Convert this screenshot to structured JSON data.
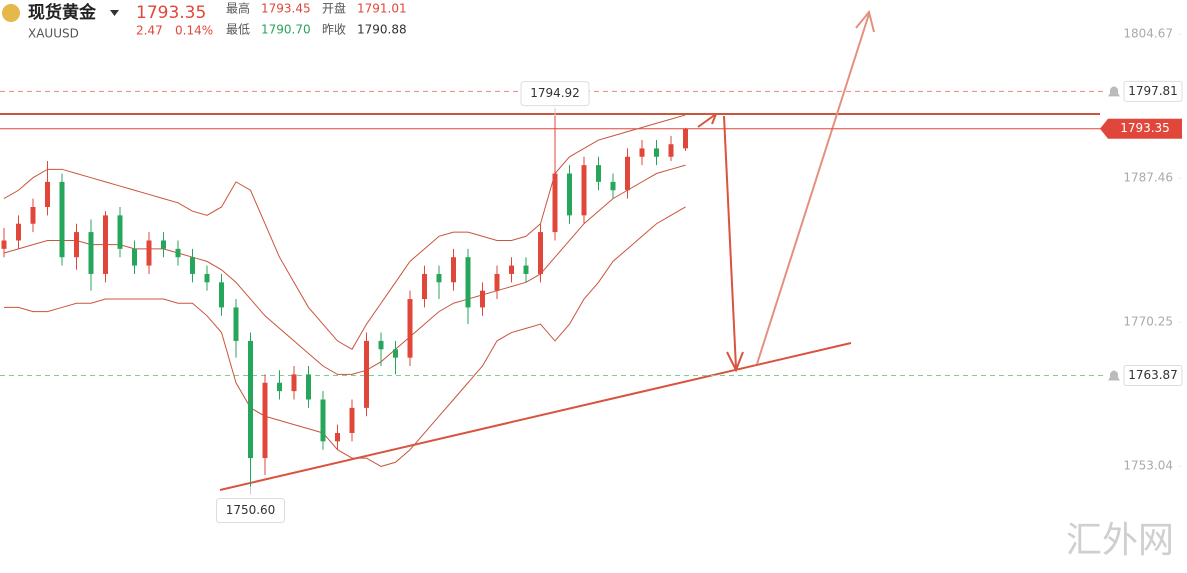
{
  "chart_data": {
    "type": "candlestick",
    "header": {
      "name": "现货黄金",
      "symbol": "XAUUSD",
      "last": "1793.35",
      "change": "2.47",
      "change_pct": "0.14%",
      "stats": [
        {
          "label": "最高",
          "value": "1793.45",
          "color": "#e0473a"
        },
        {
          "label": "开盘",
          "value": "1791.01",
          "color": "#e0473a"
        },
        {
          "label": "最低",
          "value": "1790.70",
          "color": "#26a65b"
        },
        {
          "label": "昨收",
          "value": "1790.88",
          "color": "#333333"
        }
      ]
    },
    "ylim": [
      1740.27,
      1808.73
    ],
    "yticks": [
      1804.67,
      1787.46,
      1770.25,
      1753.04
    ],
    "up_color": "#e0473a",
    "down_color": "#26a65b",
    "open": [
      1779,
      1780,
      1782,
      1784,
      1787,
      1778,
      1781,
      1776,
      1783,
      1779,
      1777,
      1780,
      1779,
      1778,
      1776,
      1775,
      1772,
      1768,
      1754,
      1763,
      1762,
      1764,
      1761,
      1756,
      1757,
      1760,
      1768,
      1767,
      1766,
      1773,
      1776,
      1775,
      1778,
      1772,
      1774,
      1776,
      1777,
      1776,
      1781,
      1788,
      1783,
      1789,
      1787,
      1786,
      1790,
      1791,
      1790,
      1791.01
    ],
    "high": [
      1781.5,
      1783,
      1785,
      1789.5,
      1788,
      1782,
      1782.5,
      1783.5,
      1784,
      1780,
      1781,
      1781,
      1780,
      1779,
      1777,
      1776,
      1773,
      1769,
      1764,
      1764.5,
      1765,
      1765,
      1762,
      1758,
      1761,
      1769,
      1769,
      1768,
      1774,
      1777,
      1777,
      1779,
      1779,
      1775,
      1777,
      1778,
      1778,
      1782,
      1794.92,
      1789,
      1790,
      1790,
      1788,
      1791,
      1792,
      1792,
      1792.5,
      1793.45
    ],
    "low": [
      1778,
      1779,
      1781,
      1783,
      1777,
      1776.5,
      1774,
      1775,
      1778,
      1776,
      1776,
      1778,
      1777,
      1775,
      1774,
      1771,
      1766,
      1750.6,
      1752,
      1761,
      1761,
      1760,
      1755,
      1755,
      1756,
      1759,
      1765,
      1764,
      1765,
      1772,
      1773,
      1774,
      1770,
      1771,
      1773,
      1775,
      1775,
      1775,
      1780,
      1782,
      1782,
      1786,
      1785,
      1785,
      1789,
      1789,
      1789.5,
      1790.7
    ],
    "close": [
      1780,
      1782,
      1784,
      1787,
      1778,
      1781,
      1776,
      1783,
      1779,
      1777,
      1780,
      1779,
      1778,
      1776,
      1775,
      1772,
      1768,
      1754,
      1763,
      1762,
      1764,
      1761,
      1756,
      1757,
      1760,
      1768,
      1767,
      1766,
      1773,
      1776,
      1775,
      1778,
      1772,
      1774,
      1776,
      1777,
      1776,
      1781,
      1788,
      1783,
      1789,
      1787,
      1786,
      1790,
      1791,
      1790,
      1791.5,
      1793.35
    ],
    "bands": {
      "color": "#c8553d",
      "upper": [
        1785,
        1786,
        1787.5,
        1788.5,
        1788.5,
        1788,
        1787.5,
        1787,
        1786.5,
        1786,
        1785.5,
        1785,
        1784.5,
        1783.5,
        1783,
        1784,
        1787,
        1786,
        1782,
        1778,
        1775,
        1772,
        1770,
        1768,
        1767,
        1770,
        1772.5,
        1775,
        1777.5,
        1779,
        1780.5,
        1781,
        1781,
        1780.5,
        1780,
        1780,
        1780.5,
        1782,
        1788,
        1790,
        1791,
        1792,
        1792.5,
        1793,
        1793.5,
        1794,
        1794.5,
        1795
      ],
      "middle": [
        1778.5,
        1779,
        1779.5,
        1780,
        1780,
        1780,
        1779.5,
        1779.5,
        1779.5,
        1779,
        1779,
        1779,
        1778.5,
        1778,
        1777.5,
        1776.5,
        1775,
        1773,
        1771,
        1769.5,
        1768,
        1766.5,
        1765,
        1764,
        1764,
        1764.5,
        1765.5,
        1767,
        1768.5,
        1770,
        1771.5,
        1772.5,
        1773,
        1773.5,
        1774,
        1774.5,
        1775,
        1776,
        1778,
        1780,
        1782,
        1783.5,
        1785,
        1786,
        1787,
        1788,
        1788.5,
        1789
      ],
      "lower": [
        1772,
        1772,
        1771.5,
        1771.5,
        1772,
        1772.5,
        1772.5,
        1773,
        1773,
        1773,
        1773,
        1773,
        1772.5,
        1772.5,
        1771,
        1769,
        1763,
        1760,
        1759,
        1758.5,
        1758,
        1757.5,
        1757,
        1755,
        1754,
        1754,
        1753,
        1753.5,
        1755,
        1757,
        1759,
        1761,
        1763,
        1765,
        1768,
        1769,
        1769.5,
        1770,
        1768,
        1770,
        1773,
        1775,
        1777.5,
        1779,
        1780.5,
        1782,
        1783,
        1784
      ]
    },
    "price_lines": [
      {
        "value": 1797.81,
        "color": "#e08a80",
        "style": "dashed"
      },
      {
        "value": 1793.35,
        "color": "#e0473a",
        "style": "solid"
      },
      {
        "value": 1763.87,
        "color": "#7ccf8f",
        "style": "dashed"
      }
    ],
    "high_marker": 1794.92,
    "low_marker": {
      "value": 1750.6,
      "label": "1750.60"
    },
    "watermark": "汇外网"
  }
}
